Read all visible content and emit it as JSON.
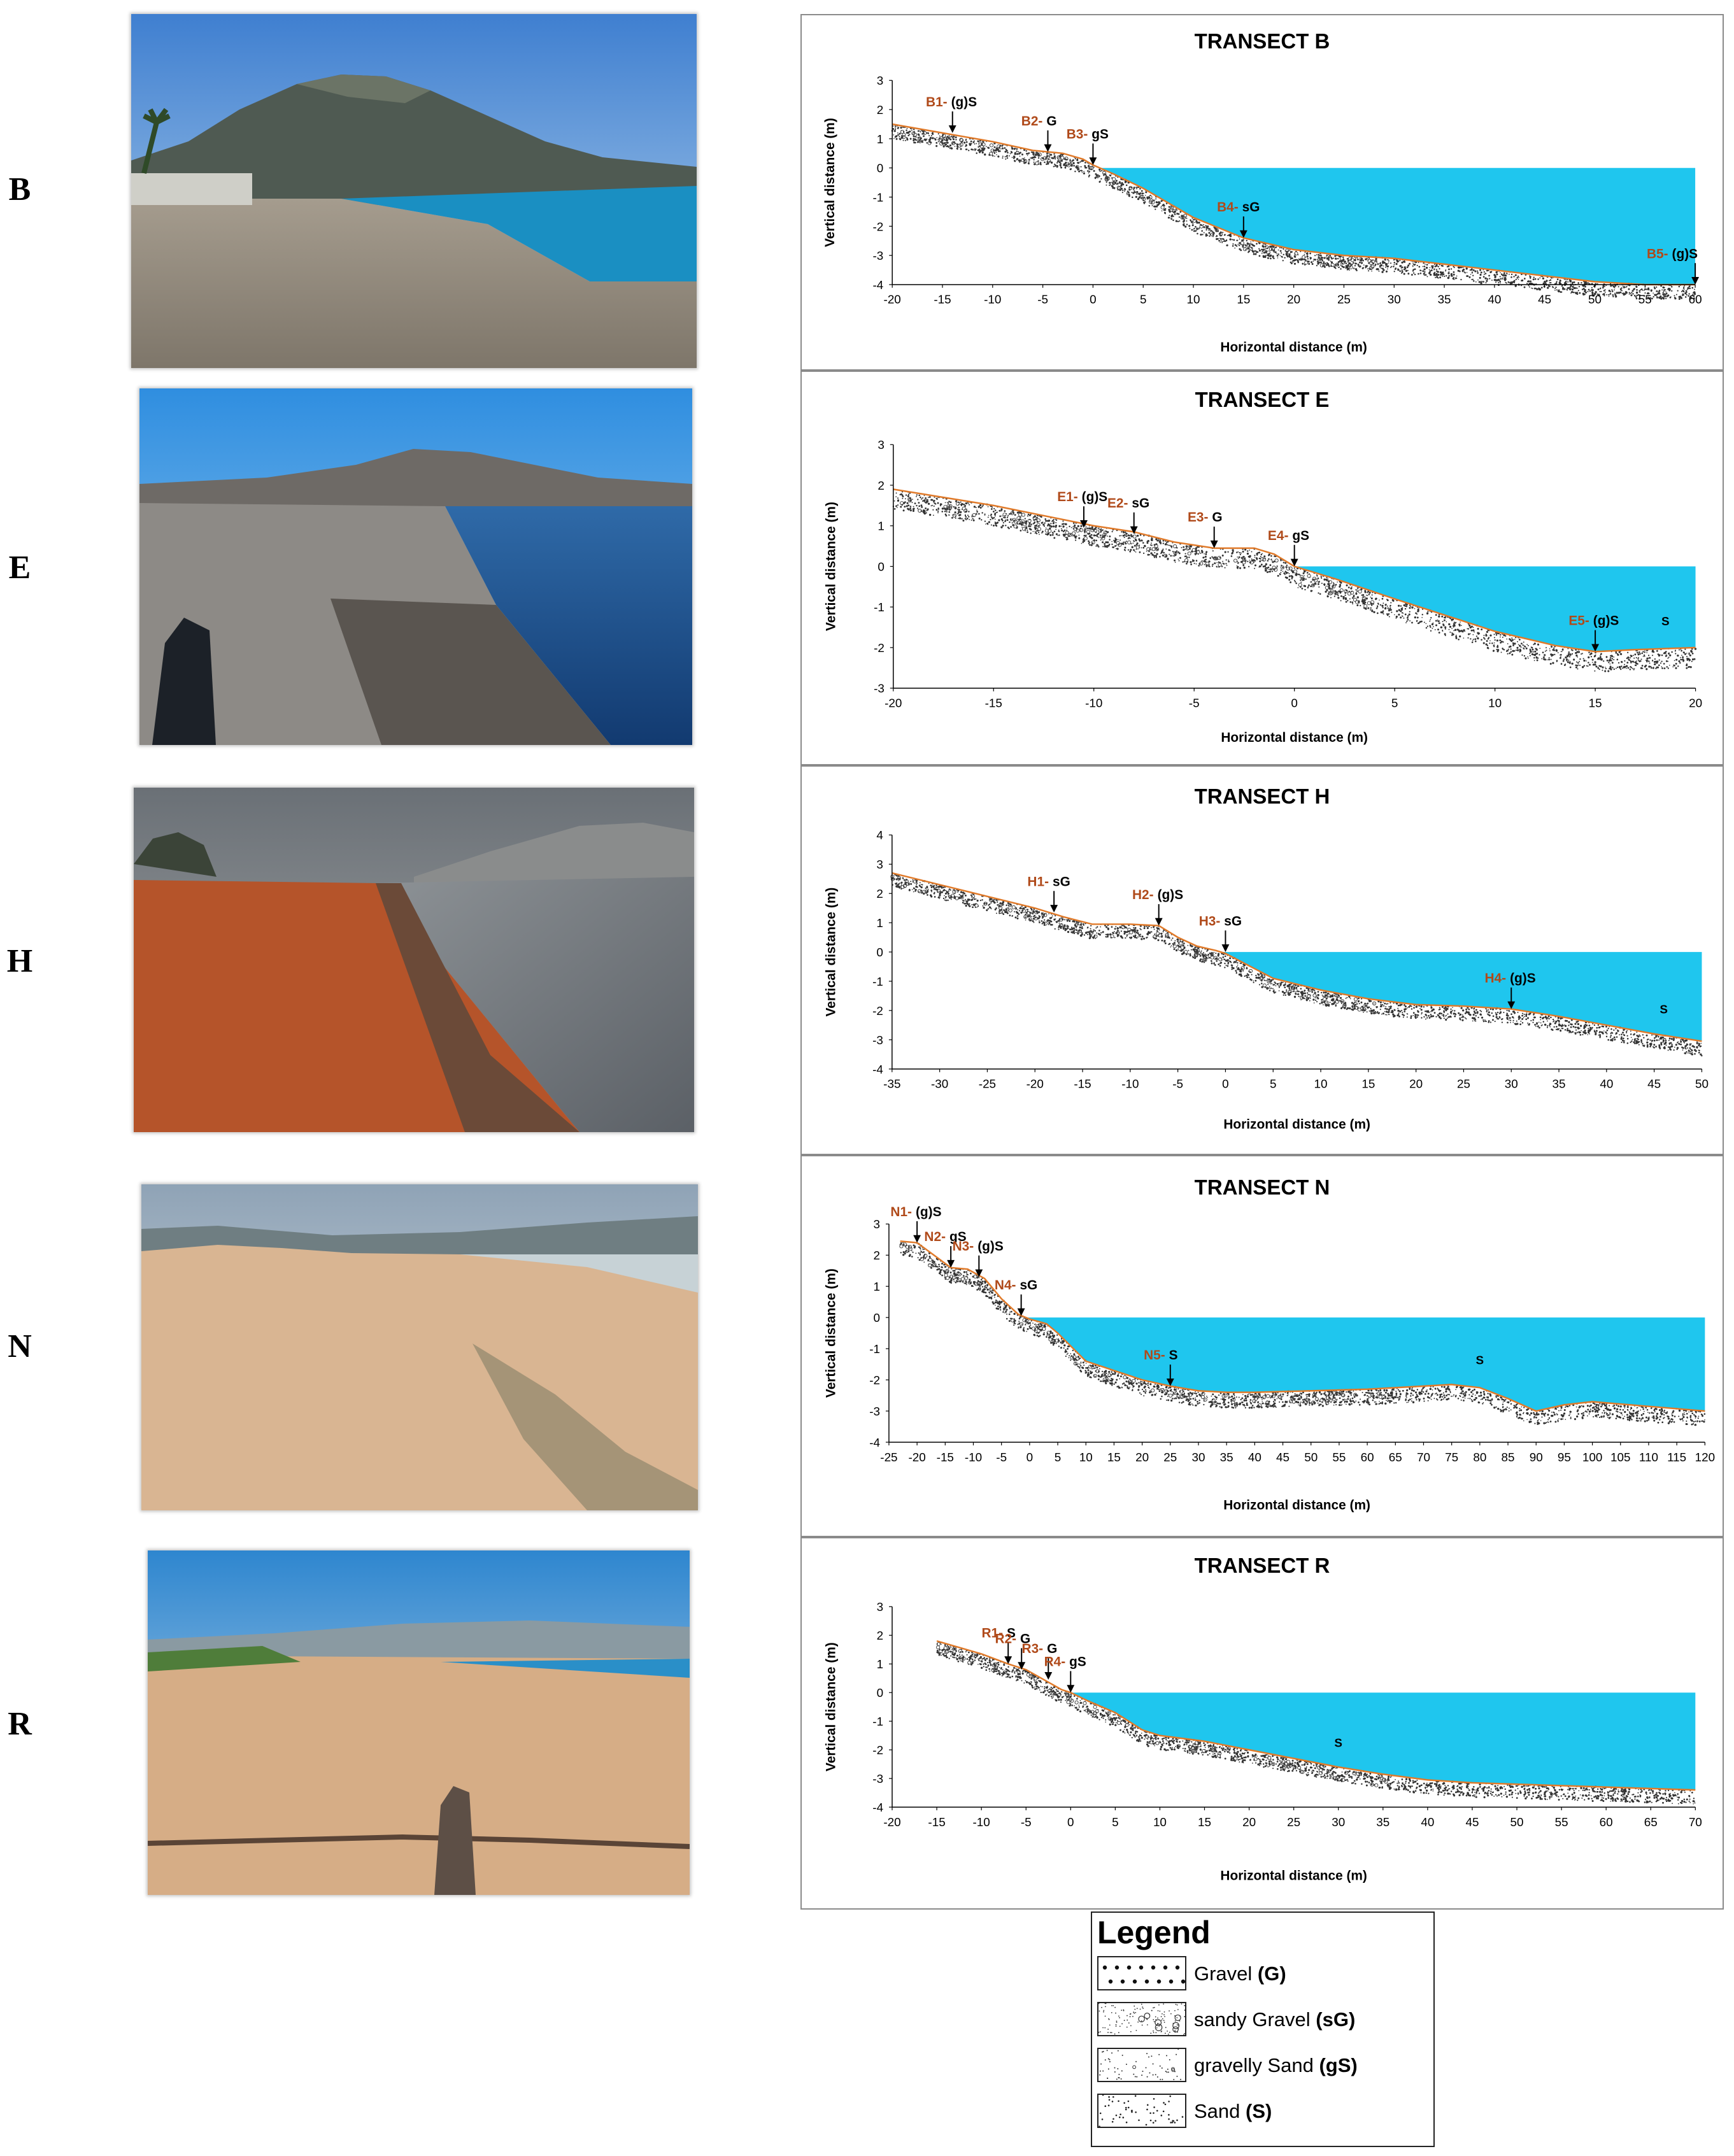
{
  "row_letters": [
    "B",
    "E",
    "H",
    "N",
    "R"
  ],
  "legend": {
    "title": "Legend",
    "items": [
      {
        "text": "Gravel ",
        "code": "(G)",
        "pattern": "gravel"
      },
      {
        "text": "sandy Gravel ",
        "code": "(sG)",
        "pattern": "sandy-gravel"
      },
      {
        "text": "gravelly Sand ",
        "code": "(gS)",
        "pattern": "gravelly-sand"
      },
      {
        "text": "Sand ",
        "code": "(S)",
        "pattern": "sand"
      }
    ]
  },
  "colors": {
    "water": "#1fc6ee",
    "profile_line": "#e07a2a",
    "station_label": "#b04a1a",
    "axis": "#000000"
  },
  "chart_data": [
    {
      "type": "line",
      "title": "TRANSECT B",
      "xlabel": "Horizontal distance (m)",
      "ylabel": "Vertical distance (m)",
      "xlim": [
        -20,
        60
      ],
      "ylim": [
        -4,
        3
      ],
      "xticks": [
        -20,
        -15,
        -10,
        -5,
        0,
        5,
        10,
        15,
        20,
        25,
        30,
        35,
        40,
        45,
        50,
        55,
        60
      ],
      "yticks": [
        -4,
        -3,
        -2,
        -1,
        0,
        1,
        2,
        3
      ],
      "profile": {
        "x": [
          -20,
          -15,
          -10,
          -6,
          -3,
          -1,
          0,
          2,
          5,
          10,
          15,
          20,
          25,
          30,
          35,
          40,
          45,
          50,
          55,
          60
        ],
        "y": [
          1.5,
          1.2,
          0.9,
          0.6,
          0.5,
          0.3,
          0.1,
          -0.2,
          -0.7,
          -1.7,
          -2.4,
          -2.8,
          -3.0,
          -3.1,
          -3.3,
          -3.5,
          -3.7,
          -3.9,
          -4.0,
          -4.0
        ]
      },
      "water": {
        "level": 0,
        "x_end": 60
      },
      "stations": [
        {
          "id": "B1-",
          "sed": "(g)S",
          "x": -14,
          "y": 1.2
        },
        {
          "id": "B2-",
          "sed": "G",
          "x": -4.5,
          "y": 0.55
        },
        {
          "id": "B3-",
          "sed": "gS",
          "x": 0,
          "y": 0.1
        },
        {
          "id": "B4-",
          "sed": "sG",
          "x": 15,
          "y": -2.4
        },
        {
          "id": "B5-",
          "sed": "(g)S",
          "x": 60,
          "y": -4.0
        }
      ],
      "labels": []
    },
    {
      "type": "line",
      "title": "TRANSECT E",
      "xlabel": "Horizontal distance (m)",
      "ylabel": "Vertical distance (m)",
      "xlim": [
        -20,
        20
      ],
      "ylim": [
        -3,
        3
      ],
      "xticks": [
        -20,
        -15,
        -10,
        -5,
        0,
        5,
        10,
        15,
        20
      ],
      "yticks": [
        -3,
        -2,
        -1,
        0,
        1,
        2,
        3
      ],
      "profile": {
        "x": [
          -20,
          -15,
          -10,
          -8,
          -6,
          -4,
          -2,
          -1,
          0,
          2,
          5,
          10,
          13,
          15,
          17,
          20
        ],
        "y": [
          1.9,
          1.5,
          1.0,
          0.85,
          0.6,
          0.45,
          0.45,
          0.3,
          0.0,
          -0.3,
          -0.8,
          -1.6,
          -1.95,
          -2.1,
          -2.05,
          -2.0
        ]
      },
      "water": {
        "level": 0,
        "x_end": 20
      },
      "stations": [
        {
          "id": "E1-",
          "sed": "(g)S",
          "x": -10.5,
          "y": 0.95
        },
        {
          "id": "E2-",
          "sed": "sG",
          "x": -8,
          "y": 0.8
        },
        {
          "id": "E3-",
          "sed": "G",
          "x": -4,
          "y": 0.45
        },
        {
          "id": "E4-",
          "sed": "gS",
          "x": 0,
          "y": 0.0
        },
        {
          "id": "E5-",
          "sed": "(g)S",
          "x": 15,
          "y": -2.1
        }
      ],
      "labels": [
        {
          "text": "S",
          "x": 18.5,
          "y": -1.45
        }
      ]
    },
    {
      "type": "line",
      "title": "TRANSECT H",
      "xlabel": "Horizontal distance (m)",
      "ylabel": "Vertical distance (m)",
      "xlim": [
        -35,
        50
      ],
      "ylim": [
        -4,
        4
      ],
      "xticks": [
        -35,
        -30,
        -25,
        -20,
        -15,
        -10,
        -5,
        0,
        5,
        10,
        15,
        20,
        25,
        30,
        35,
        40,
        45,
        50
      ],
      "yticks": [
        -4,
        -3,
        -2,
        -1,
        0,
        1,
        2,
        3,
        4
      ],
      "profile": {
        "x": [
          -35,
          -30,
          -25,
          -20,
          -17,
          -14,
          -10,
          -7,
          -5,
          -3,
          -1,
          0,
          5,
          10,
          15,
          20,
          25,
          30,
          35,
          40,
          45,
          50
        ],
        "y": [
          2.7,
          2.3,
          1.9,
          1.5,
          1.2,
          0.95,
          0.95,
          0.9,
          0.5,
          0.2,
          0.05,
          -0.05,
          -0.9,
          -1.3,
          -1.6,
          -1.8,
          -1.85,
          -1.95,
          -2.2,
          -2.5,
          -2.8,
          -3.05
        ]
      },
      "water": {
        "level": 0,
        "x_end": 50
      },
      "stations": [
        {
          "id": "H1-",
          "sed": "sG",
          "x": -18,
          "y": 1.35
        },
        {
          "id": "H2-",
          "sed": "(g)S",
          "x": -7,
          "y": 0.9
        },
        {
          "id": "H3-",
          "sed": "sG",
          "x": 0,
          "y": 0.0
        },
        {
          "id": "H4-",
          "sed": "(g)S",
          "x": 30,
          "y": -1.95
        }
      ],
      "labels": [
        {
          "text": "S",
          "x": 46,
          "y": -2.1
        }
      ]
    },
    {
      "type": "line",
      "title": "TRANSECT N",
      "xlabel": "Horizontal distance (m)",
      "ylabel": "Vertical distance (m)",
      "xlim": [
        -25,
        120
      ],
      "ylim": [
        -4,
        3
      ],
      "xticks": [
        -25,
        -20,
        -15,
        -10,
        -5,
        0,
        5,
        10,
        15,
        20,
        25,
        30,
        35,
        40,
        45,
        50,
        55,
        60,
        65,
        70,
        75,
        80,
        85,
        90,
        95,
        100,
        105,
        110,
        115,
        120
      ],
      "yticks": [
        -4,
        -3,
        -2,
        -1,
        0,
        1,
        2,
        3
      ],
      "profile": {
        "x": [
          -23,
          -20,
          -17,
          -14,
          -11,
          -8,
          -5,
          -2,
          0,
          3,
          5,
          10,
          15,
          20,
          25,
          30,
          35,
          40,
          50,
          60,
          70,
          75,
          80,
          85,
          90,
          95,
          100,
          110,
          120
        ],
        "y": [
          2.45,
          2.4,
          2.0,
          1.6,
          1.55,
          1.25,
          0.6,
          0.1,
          -0.05,
          -0.2,
          -0.5,
          -1.4,
          -1.7,
          -2.0,
          -2.2,
          -2.35,
          -2.4,
          -2.4,
          -2.35,
          -2.3,
          -2.2,
          -2.15,
          -2.25,
          -2.6,
          -3.0,
          -2.8,
          -2.7,
          -2.85,
          -3.0
        ]
      },
      "water": {
        "level": 0,
        "x_end": 120
      },
      "stations": [
        {
          "id": "N1-",
          "sed": "(g)S",
          "x": -20,
          "y": 2.4
        },
        {
          "id": "N2-",
          "sed": "gS",
          "x": -14,
          "y": 1.6
        },
        {
          "id": "N3-",
          "sed": "(g)S",
          "x": -9,
          "y": 1.3
        },
        {
          "id": "N4-",
          "sed": "sG",
          "x": -1.5,
          "y": 0.05
        },
        {
          "id": "N5-",
          "sed": "S",
          "x": 25,
          "y": -2.2
        }
      ],
      "labels": [
        {
          "text": "S",
          "x": 80,
          "y": -1.5
        }
      ]
    },
    {
      "type": "line",
      "title": "TRANSECT R",
      "xlabel": "Horizontal distance (m)",
      "ylabel": "Vertical distance (m)",
      "xlim": [
        -20,
        70
      ],
      "ylim": [
        -4,
        3
      ],
      "xticks": [
        -20,
        -15,
        -10,
        -5,
        0,
        5,
        10,
        15,
        20,
        25,
        30,
        35,
        40,
        45,
        50,
        55,
        60,
        65,
        70
      ],
      "yticks": [
        -4,
        -3,
        -2,
        -1,
        0,
        1,
        2,
        3
      ],
      "profile": {
        "x": [
          -15,
          -10,
          -7,
          -5,
          -3,
          -1,
          0,
          2,
          5,
          8,
          10,
          15,
          20,
          25,
          30,
          35,
          40,
          45,
          50,
          55,
          60,
          65,
          70
        ],
        "y": [
          1.8,
          1.35,
          1.0,
          0.8,
          0.45,
          0.1,
          0.0,
          -0.3,
          -0.7,
          -1.3,
          -1.5,
          -1.7,
          -2.0,
          -2.3,
          -2.6,
          -2.85,
          -3.05,
          -3.15,
          -3.2,
          -3.25,
          -3.3,
          -3.35,
          -3.4
        ]
      },
      "water": {
        "level": 0,
        "x_end": 70
      },
      "stations": [
        {
          "id": "R1-",
          "sed": "S",
          "x": -7,
          "y": 1.0
        },
        {
          "id": "R2-",
          "sed": "G",
          "x": -5.5,
          "y": 0.8
        },
        {
          "id": "R3-",
          "sed": "G",
          "x": -2.5,
          "y": 0.45
        },
        {
          "id": "R4-",
          "sed": "gS",
          "x": 0,
          "y": 0.0
        }
      ],
      "labels": [
        {
          "text": "S",
          "x": 30,
          "y": -1.9
        }
      ]
    }
  ]
}
